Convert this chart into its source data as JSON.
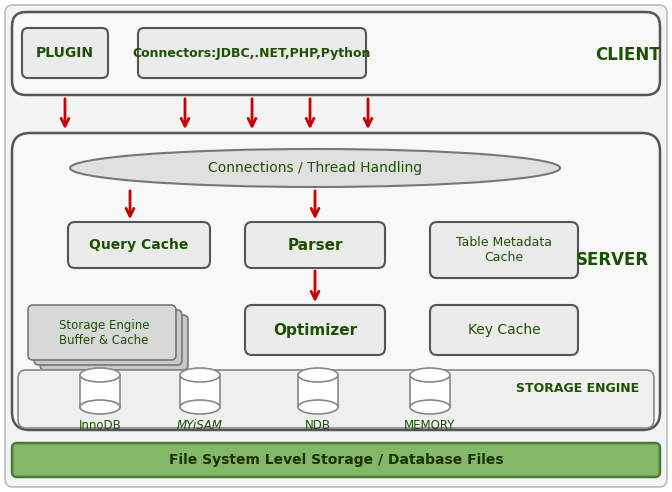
{
  "dark_green": "#1a5200",
  "arrow_color": "#cc0000",
  "client_label": "CLIENT",
  "server_label": "SERVER",
  "storage_engine_label": "STORAGE ENGINE",
  "plugin_text": "PLUGIN",
  "connectors_text": "Connectors:JDBC,.NET,PHP,Python",
  "connections_text": "Connections / Thread Handling",
  "query_cache_text": "Query Cache",
  "parser_text": "Parser",
  "optimizer_text": "Optimizer",
  "table_meta_text": "Table Metadata\nCache",
  "key_cache_text": "Key Cache",
  "storage_engine_buffer_text": "Storage Engine\nBuffer & Cache",
  "db_labels": [
    "InnoDB",
    "MYiSAM",
    "NDB",
    "MEMORY"
  ],
  "filesystem_text": "File System Level Storage / Database Files"
}
